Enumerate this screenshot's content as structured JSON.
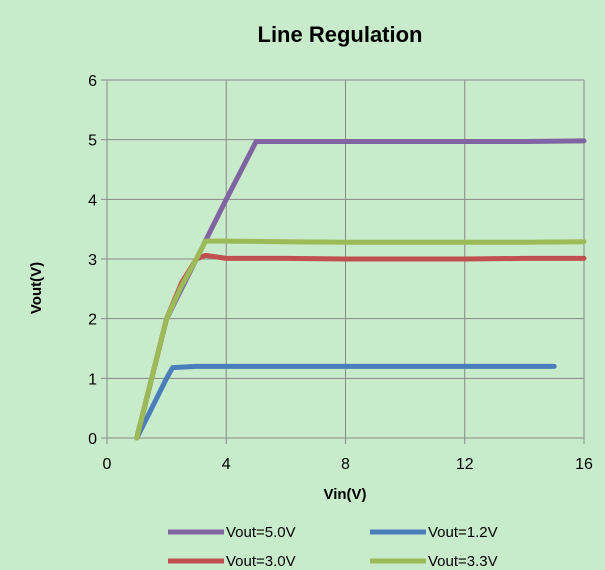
{
  "chart_data": {
    "type": "line",
    "title": "Line Regulation",
    "xlabel": "Vin(V)",
    "ylabel": "Vout(V)",
    "xlim": [
      0,
      16
    ],
    "ylim": [
      0,
      6
    ],
    "xticks": [
      0,
      4,
      8,
      12,
      16
    ],
    "yticks": [
      0,
      1,
      2,
      3,
      4,
      5,
      6
    ],
    "grid": true,
    "legend_position": "bottom",
    "background_color": "#C8EBCB",
    "series": [
      {
        "name": "Vout=5.0V",
        "color": "#8064A2",
        "x": [
          1.0,
          1.5,
          2.0,
          3.0,
          4.0,
          5.0,
          6.0,
          8.0,
          10.0,
          12.0,
          14.0,
          16.0
        ],
        "y": [
          0.0,
          1.0,
          2.0,
          3.0,
          4.0,
          4.97,
          4.97,
          4.97,
          4.97,
          4.97,
          4.97,
          4.98
        ]
      },
      {
        "name": "Vout=1.2V",
        "color": "#4A7EBB",
        "x": [
          1.0,
          1.5,
          2.0,
          2.2,
          3.0,
          4.0,
          6.0,
          8.0,
          10.0,
          12.0,
          14.0,
          15.0
        ],
        "y": [
          0.0,
          0.5,
          1.0,
          1.18,
          1.2,
          1.2,
          1.2,
          1.2,
          1.2,
          1.2,
          1.2,
          1.2
        ]
      },
      {
        "name": "Vout=3.0V",
        "color": "#C0504D",
        "x": [
          1.0,
          1.5,
          2.0,
          2.5,
          3.0,
          3.3,
          3.6,
          4.0,
          6.0,
          8.0,
          10.0,
          12.0,
          14.0,
          16.0
        ],
        "y": [
          0.0,
          1.0,
          2.0,
          2.6,
          3.0,
          3.06,
          3.04,
          3.01,
          3.01,
          3.0,
          3.0,
          3.0,
          3.01,
          3.01
        ]
      },
      {
        "name": "Vout=3.3V",
        "color": "#9BBB59",
        "x": [
          1.0,
          1.5,
          2.0,
          2.5,
          3.0,
          3.3,
          4.0,
          6.0,
          8.0,
          10.0,
          12.0,
          14.0,
          16.0
        ],
        "y": [
          0.0,
          1.0,
          2.0,
          2.55,
          3.0,
          3.3,
          3.3,
          3.29,
          3.28,
          3.28,
          3.28,
          3.28,
          3.29
        ]
      }
    ]
  }
}
